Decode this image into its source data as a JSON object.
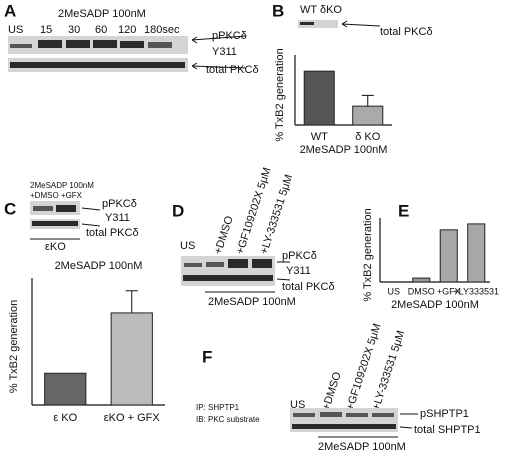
{
  "blots": {
    "A": {
      "letter": "A",
      "treatment": "2MeSADP 100nM",
      "lanes": [
        "US",
        "15",
        "30",
        "60",
        "120",
        "180sec"
      ],
      "labels": [
        "pPKCδ",
        "Y311",
        "total PKCδ"
      ]
    },
    "B": {
      "lanes": "WT δKO",
      "label": "total PKCδ"
    },
    "C": {
      "treatment": "2MeSADP 100nM",
      "lanes": "+DMSO  +GFX",
      "labels": [
        "pPKCδ",
        "Y311",
        "total PKCδ"
      ],
      "genotype": "εKO"
    },
    "D": {
      "letter": "D",
      "lanes": [
        "US",
        "+DMSO",
        "+GF109202X 5μM",
        "+LY-333531 5μM"
      ],
      "labels": [
        "pPKCδ",
        "Y311",
        "total PKCδ"
      ],
      "treatment": "2MeSADP 100nM"
    },
    "F": {
      "letter": "F",
      "rows": [
        "IP: SHPTP1",
        "IB: PKC substrate"
      ],
      "lanes": [
        "US",
        "+DMSO",
        "+GF109202X 5μM",
        "+LY-333531 5μM"
      ],
      "labels": [
        "pSHPTP1",
        "total SHPTP1"
      ],
      "treatment": "2MeSADP 100nM"
    }
  },
  "chart_data": [
    {
      "type": "bar",
      "panel": "B",
      "ylabel": "% TxB2 generation",
      "xlabel": "2MeSADP 100nM",
      "categories": [
        "WT",
        "δ KO"
      ],
      "values": [
        100,
        35
      ],
      "errors": [
        null,
        20
      ],
      "colors": [
        "#555555",
        "#aaaaaa"
      ],
      "ylim": [
        0,
        130
      ]
    },
    {
      "type": "bar",
      "panel": "C",
      "title": "2MeSADP 100nM",
      "ylabel": "% TxB2 generation",
      "categories": [
        "ε KO",
        "εKO + GFX"
      ],
      "values": [
        100,
        290
      ],
      "errors": [
        null,
        70
      ],
      "colors": [
        "#666666",
        "#bbbbbb"
      ],
      "ylim": [
        0,
        400
      ]
    },
    {
      "type": "bar",
      "panel": "E",
      "ylabel": "% TxB2 generation",
      "xlabel": "2MeSADP 100nM",
      "categories": [
        "US",
        "DMSO",
        "+GFX",
        "+LY333531"
      ],
      "values": [
        0,
        40,
        530,
        590
      ],
      "colors": [
        "#999999",
        "#999999",
        "#a8a8a8",
        "#a8a8a8"
      ],
      "ylim": [
        0,
        650
      ]
    }
  ]
}
